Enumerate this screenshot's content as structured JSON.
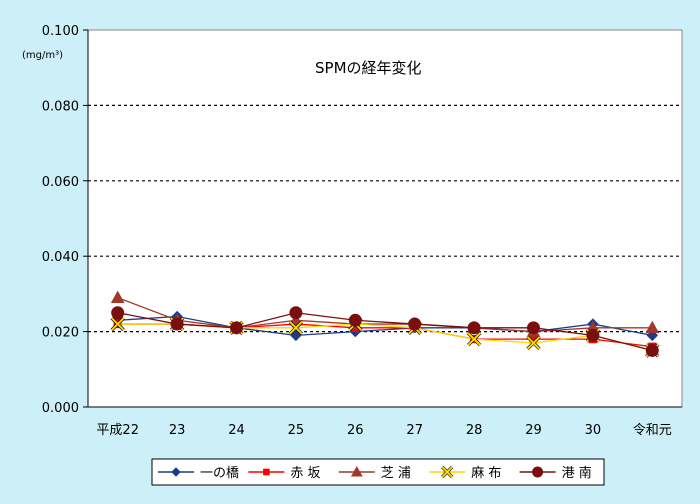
{
  "chart_data": {
    "type": "line",
    "title": "SPMの経年変化",
    "ylabel": "(mg/m³)",
    "xlabel": "",
    "ylim": [
      0.0,
      0.1
    ],
    "yticks": [
      "0.000",
      "0.020",
      "0.040",
      "0.060",
      "0.080",
      "0.100"
    ],
    "categories": [
      "平成22",
      "23",
      "24",
      "25",
      "26",
      "27",
      "28",
      "29",
      "30",
      "令和元"
    ],
    "grid": true,
    "legend_position": "bottom",
    "series": [
      {
        "name": "一の橋",
        "color": "#1f3c88",
        "marker": "diamond",
        "values": [
          0.023,
          0.024,
          0.021,
          0.019,
          0.02,
          0.021,
          0.021,
          0.02,
          0.022,
          0.019
        ]
      },
      {
        "name": "赤 坂",
        "color": "#ff0000",
        "marker": "square",
        "values": [
          0.022,
          0.022,
          0.021,
          0.022,
          0.021,
          0.021,
          0.018,
          0.018,
          0.018,
          0.016
        ]
      },
      {
        "name": "芝 浦",
        "color": "#a0392b",
        "marker": "triangle",
        "values": [
          0.029,
          0.023,
          0.021,
          0.023,
          0.022,
          0.022,
          0.021,
          0.02,
          0.021,
          0.021
        ]
      },
      {
        "name": "麻 布",
        "color": "#ffd700",
        "marker": "x",
        "values": [
          0.022,
          0.022,
          0.021,
          0.021,
          0.022,
          0.021,
          0.018,
          0.017,
          0.019,
          0.015
        ]
      },
      {
        "name": "港 南",
        "color": "#7b0f0f",
        "marker": "circle",
        "values": [
          0.025,
          0.022,
          0.021,
          0.025,
          0.023,
          0.022,
          0.021,
          0.021,
          0.019,
          0.015
        ]
      }
    ]
  }
}
